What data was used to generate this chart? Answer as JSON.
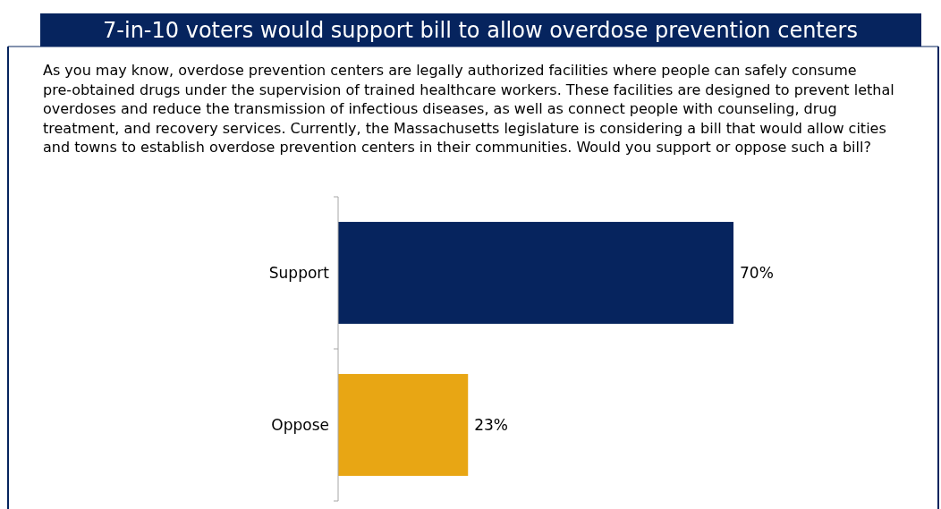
{
  "chart_data": {
    "type": "bar",
    "orientation": "horizontal",
    "title": "7-in-10 voters would support bill to allow overdose prevention centers",
    "subtitle": "As you may know, overdose prevention centers are legally authorized facilities where people can safely consume pre-obtained drugs under the supervision of trained healthcare workers. These facilities are designed to prevent lethal overdoses and reduce the transmission of infectious diseases, as well as connect people with counseling, drug treatment, and recovery services. Currently, the Massachusetts legislature is considering a bill that would allow cities and towns to establish overdose prevention centers in their communities. Would you support or oppose such a bill?",
    "categories": [
      "Support",
      "Oppose"
    ],
    "values": [
      70,
      23
    ],
    "colors": [
      "#06245e",
      "#e8a614"
    ],
    "value_labels": [
      "70%",
      "23%"
    ],
    "tick_labels": "y"
  }
}
